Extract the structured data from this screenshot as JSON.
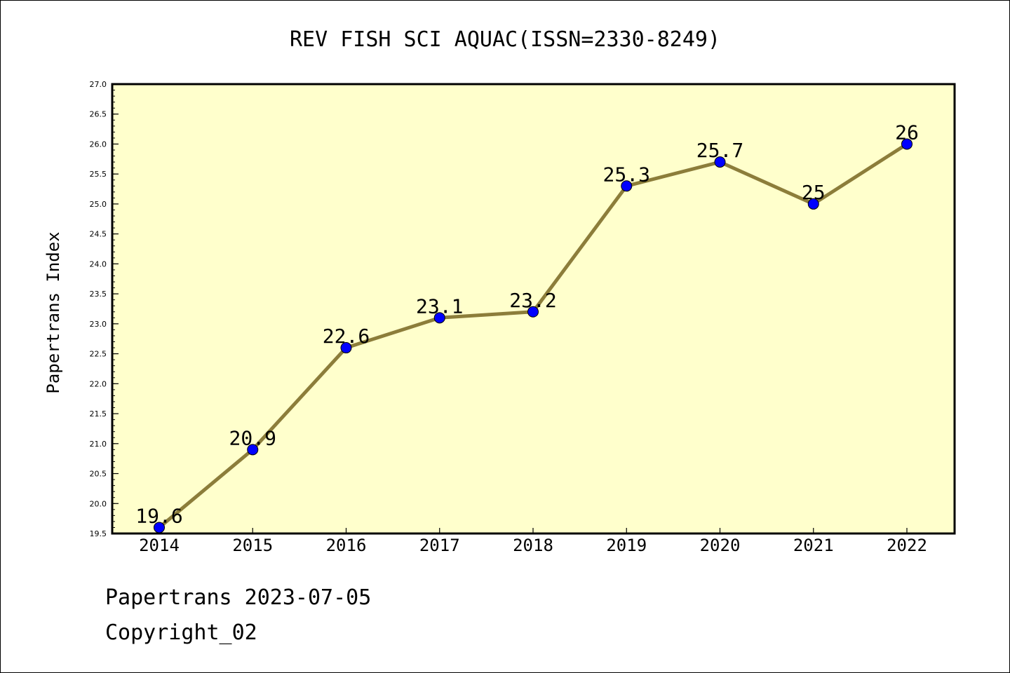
{
  "chart_data": {
    "type": "line",
    "title": "REV FISH SCI AQUAC(ISSN=2330-8249)",
    "ylabel": "Papertrans Index",
    "xlabel": "",
    "categories": [
      "2014",
      "2015",
      "2016",
      "2017",
      "2018",
      "2019",
      "2020",
      "2021",
      "2022"
    ],
    "values": [
      19.6,
      20.9,
      22.6,
      23.1,
      23.2,
      25.3,
      25.7,
      25,
      26
    ],
    "point_labels": [
      "19.6",
      "20.9",
      "22.6",
      "23.1",
      "23.2",
      "25.3",
      "25.7",
      "25",
      "26"
    ],
    "ylim": [
      19.5,
      27.0
    ],
    "yticks": [
      "19.5",
      "20.0",
      "20.5",
      "21.0",
      "21.5",
      "22.0",
      "22.5",
      "23.0",
      "23.5",
      "24.0",
      "24.5",
      "25.0",
      "25.5",
      "26.0",
      "26.5",
      "27.0"
    ],
    "grid": false,
    "legend": "none",
    "colors": {
      "plot_background": "#ffffcc",
      "line": "#8c7d3a",
      "marker": "#0000ff"
    }
  },
  "footer": {
    "date_text": "Papertrans 2023-07-05",
    "copyright_text": "Copyright_02"
  }
}
